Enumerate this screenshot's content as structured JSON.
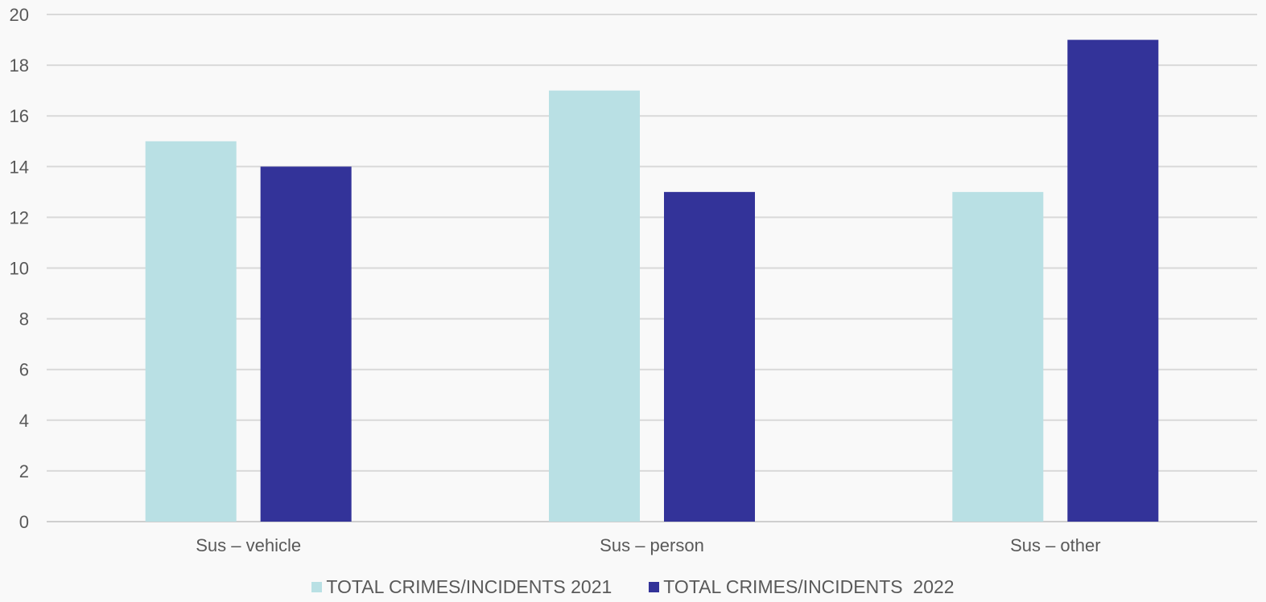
{
  "chart_data": {
    "type": "bar",
    "categories": [
      "Sus – vehicle",
      "Sus – person",
      "Sus – other"
    ],
    "series": [
      {
        "name": "TOTAL CRIMES/INCIDENTS 2021",
        "values": [
          15,
          17,
          13
        ],
        "color": "#b9e0e4"
      },
      {
        "name": "TOTAL CRIMES/INCIDENTS  2022",
        "values": [
          14,
          13,
          19
        ],
        "color": "#333399"
      }
    ],
    "ylim": [
      0,
      20
    ],
    "yticks": [
      "0",
      "2",
      "4",
      "6",
      "8",
      "10",
      "12",
      "14",
      "16",
      "18",
      "20"
    ],
    "grid": true,
    "legend": "bottom"
  }
}
